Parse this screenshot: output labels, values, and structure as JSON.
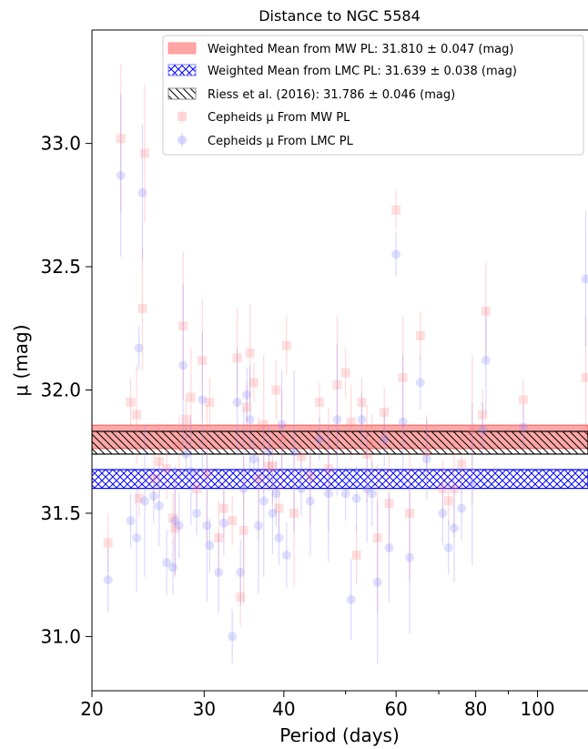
{
  "chart_data": {
    "type": "scatter",
    "title": "Distance to NGC 5584",
    "xlabel": "Period (days)",
    "ylabel": "μ (mag)",
    "xscale": "log",
    "xlim": [
      20,
      120
    ],
    "ylim": [
      30.78,
      33.46
    ],
    "xticks": [
      20,
      30,
      40,
      60,
      80,
      100
    ],
    "xticklabels": [
      "20",
      "30",
      "40",
      "60",
      "80",
      "100"
    ],
    "yticks": [
      31.0,
      31.5,
      32.0,
      32.5,
      33.0
    ],
    "yticklabels": [
      "31.0",
      "31.5",
      "32.0",
      "32.5",
      "33.0"
    ],
    "grid": false,
    "legend_placement": "top-right",
    "bands": [
      {
        "name": "Weighted Mean from MW PL: 31.810 ± 0.047 (mag)",
        "low": 31.763,
        "high": 31.857,
        "fill": "#ff9999",
        "edge": "#ff6666",
        "hatch": "none"
      },
      {
        "name": "Weighted Mean from LMC PL: 31.639 ± 0.038 (mag)",
        "low": 31.601,
        "high": 31.677,
        "fill": "#ffffff",
        "edge": "#0000ff",
        "hatch": "cross"
      },
      {
        "name": "Riess et al. (2016): 31.786 ± 0.046 (mag)",
        "low": 31.74,
        "high": 31.832,
        "fill": "none",
        "edge": "#000000",
        "hatch": "diag"
      }
    ],
    "series": [
      {
        "name": "Cepheids μ From MW PL",
        "marker": "square",
        "color": "#ff8080",
        "x": [
          21.2,
          22.2,
          23.0,
          23.5,
          23.7,
          24.0,
          24.2,
          25.0,
          25.5,
          26.2,
          26.8,
          27.0,
          27.4,
          27.8,
          28.1,
          28.6,
          29.2,
          29.8,
          30.3,
          30.6,
          31.6,
          32.2,
          33.2,
          33.8,
          34.2,
          34.6,
          35.0,
          35.4,
          35.9,
          36.5,
          37.2,
          37.9,
          38.4,
          38.9,
          39.3,
          39.7,
          40.4,
          41.5,
          42.6,
          44.0,
          45.5,
          47.0,
          48.5,
          50.0,
          51.0,
          52.0,
          53.0,
          54.0,
          55.0,
          56.1,
          57.5,
          58.5,
          60.0,
          61.5,
          63.0,
          65.5,
          67.0,
          71.0,
          72.5,
          74.0,
          76.0,
          79.0,
          82.0,
          83.0,
          95.0,
          119.0
        ],
        "y": [
          31.38,
          33.02,
          31.95,
          31.9,
          31.56,
          32.33,
          32.96,
          31.64,
          31.71,
          31.68,
          31.48,
          31.44,
          31.77,
          32.26,
          31.88,
          31.97,
          31.6,
          32.12,
          31.66,
          31.95,
          31.4,
          31.52,
          31.47,
          32.13,
          31.16,
          31.43,
          31.93,
          32.15,
          32.03,
          31.64,
          31.86,
          31.69,
          31.69,
          32.0,
          31.52,
          31.8,
          32.18,
          31.5,
          31.73,
          31.65,
          31.95,
          31.68,
          32.02,
          32.07,
          31.87,
          31.33,
          31.95,
          31.74,
          31.78,
          31.4,
          31.91,
          31.54,
          32.73,
          32.05,
          31.5,
          32.22,
          31.75,
          31.6,
          31.55,
          31.6,
          31.7,
          31.84,
          31.9,
          32.32,
          31.96,
          32.05
        ]
      },
      {
        "name": "Cepheids μ From LMC PL",
        "marker": "circle",
        "color": "#8080ff",
        "x": [
          21.2,
          22.2,
          23.0,
          23.5,
          23.7,
          24.0,
          24.2,
          25.0,
          25.5,
          26.2,
          26.8,
          27.0,
          27.4,
          27.8,
          28.1,
          28.6,
          29.2,
          29.8,
          30.3,
          30.6,
          31.6,
          32.2,
          33.2,
          33.8,
          34.2,
          34.6,
          35.0,
          35.4,
          35.9,
          36.5,
          37.2,
          37.9,
          38.4,
          38.9,
          39.3,
          39.7,
          40.4,
          41.5,
          42.6,
          44.0,
          45.5,
          47.0,
          48.5,
          50.0,
          51.0,
          52.0,
          53.0,
          54.0,
          55.0,
          56.1,
          57.5,
          58.5,
          60.0,
          61.5,
          63.0,
          65.5,
          67.0,
          71.0,
          72.5,
          74.0,
          76.0,
          79.0,
          82.0,
          83.0,
          95.0,
          119.0
        ],
        "y": [
          31.23,
          32.87,
          31.47,
          31.4,
          32.17,
          32.8,
          31.55,
          31.57,
          31.53,
          31.3,
          31.28,
          31.47,
          31.45,
          32.1,
          31.74,
          31.67,
          31.5,
          31.96,
          31.45,
          31.37,
          31.26,
          31.46,
          31.0,
          31.95,
          31.26,
          31.6,
          31.98,
          31.88,
          31.72,
          31.45,
          31.55,
          31.75,
          31.5,
          31.58,
          31.4,
          31.86,
          31.33,
          31.75,
          31.6,
          31.55,
          31.8,
          31.58,
          31.88,
          31.58,
          31.15,
          31.56,
          31.88,
          31.6,
          31.58,
          31.22,
          31.8,
          31.36,
          32.55,
          31.87,
          31.32,
          32.03,
          31.72,
          31.5,
          31.36,
          31.44,
          31.52,
          31.62,
          31.84,
          32.12,
          31.85,
          32.45
        ]
      }
    ]
  }
}
